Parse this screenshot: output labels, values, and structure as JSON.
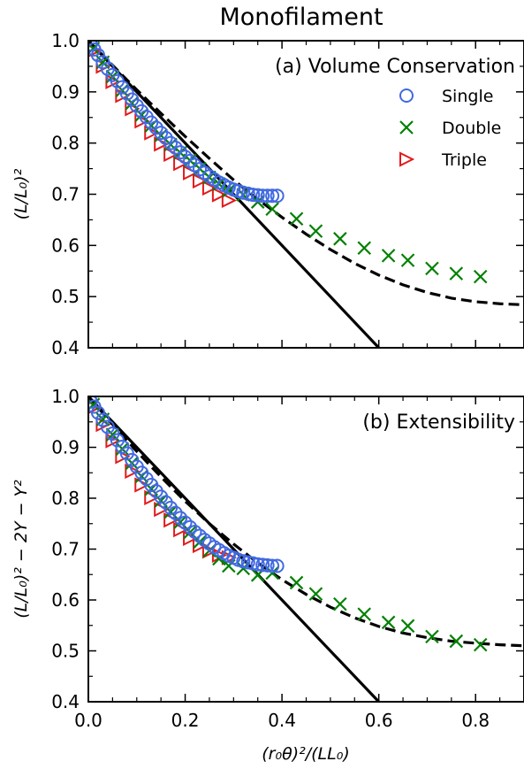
{
  "figure": {
    "title": "Monofilament",
    "xlabel": "(r₀θ)²/(LL₀)"
  },
  "chart_data": [
    {
      "type": "scatter",
      "panel": "a",
      "title": "(a) Volume Conservation",
      "xlabel": "(r₀θ)²/(LL₀)",
      "ylabel": "(L/L₀)²",
      "xlim": [
        0.0,
        0.9
      ],
      "ylim": [
        0.4,
        1.0
      ],
      "x_ticks": [
        "0.0",
        "0.2",
        "0.4",
        "0.6",
        "0.8"
      ],
      "y_ticks": [
        "0.4",
        "0.5",
        "0.6",
        "0.7",
        "0.8",
        "0.9",
        "1.0"
      ],
      "grid": false,
      "legend_position": "upper-right",
      "series": [
        {
          "name": "Single",
          "marker": "circle",
          "color": "#4169e1",
          "points": [
            [
              0.005,
              0.993
            ],
            [
              0.012,
              0.983
            ],
            [
              0.02,
              0.972
            ],
            [
              0.03,
              0.958
            ],
            [
              0.04,
              0.945
            ],
            [
              0.05,
              0.933
            ],
            [
              0.06,
              0.921
            ],
            [
              0.07,
              0.909
            ],
            [
              0.08,
              0.897
            ],
            [
              0.09,
              0.885
            ],
            [
              0.1,
              0.873
            ],
            [
              0.11,
              0.862
            ],
            [
              0.12,
              0.851
            ],
            [
              0.13,
              0.84
            ],
            [
              0.14,
              0.83
            ],
            [
              0.15,
              0.82
            ],
            [
              0.16,
              0.81
            ],
            [
              0.17,
              0.8
            ],
            [
              0.18,
              0.791
            ],
            [
              0.19,
              0.782
            ],
            [
              0.2,
              0.773
            ],
            [
              0.21,
              0.765
            ],
            [
              0.22,
              0.757
            ],
            [
              0.23,
              0.749
            ],
            [
              0.24,
              0.742
            ],
            [
              0.25,
              0.735
            ],
            [
              0.26,
              0.729
            ],
            [
              0.27,
              0.723
            ],
            [
              0.28,
              0.718
            ],
            [
              0.29,
              0.713
            ],
            [
              0.3,
              0.709
            ],
            [
              0.31,
              0.706
            ],
            [
              0.32,
              0.703
            ],
            [
              0.33,
              0.701
            ],
            [
              0.34,
              0.699
            ],
            [
              0.35,
              0.698
            ],
            [
              0.36,
              0.697
            ],
            [
              0.37,
              0.697
            ],
            [
              0.38,
              0.697
            ],
            [
              0.39,
              0.697
            ]
          ]
        },
        {
          "name": "Double",
          "marker": "x",
          "color": "#008000",
          "points": [
            [
              0.01,
              0.985
            ],
            [
              0.03,
              0.958
            ],
            [
              0.05,
              0.93
            ],
            [
              0.07,
              0.903
            ],
            [
              0.09,
              0.878
            ],
            [
              0.11,
              0.855
            ],
            [
              0.13,
              0.834
            ],
            [
              0.15,
              0.815
            ],
            [
              0.17,
              0.797
            ],
            [
              0.19,
              0.781
            ],
            [
              0.21,
              0.766
            ],
            [
              0.23,
              0.75
            ],
            [
              0.25,
              0.733
            ],
            [
              0.27,
              0.72
            ],
            [
              0.29,
              0.707
            ],
            [
              0.32,
              0.699
            ],
            [
              0.35,
              0.685
            ],
            [
              0.38,
              0.671
            ],
            [
              0.43,
              0.652
            ],
            [
              0.47,
              0.628
            ],
            [
              0.52,
              0.613
            ],
            [
              0.57,
              0.595
            ],
            [
              0.62,
              0.58
            ],
            [
              0.66,
              0.571
            ],
            [
              0.71,
              0.555
            ],
            [
              0.76,
              0.545
            ],
            [
              0.81,
              0.539
            ]
          ]
        },
        {
          "name": "Triple",
          "marker": "triangle-right",
          "color": "#e31a1c",
          "points": [
            [
              0.01,
              0.98
            ],
            [
              0.03,
              0.95
            ],
            [
              0.05,
              0.92
            ],
            [
              0.07,
              0.893
            ],
            [
              0.09,
              0.867
            ],
            [
              0.11,
              0.843
            ],
            [
              0.13,
              0.82
            ],
            [
              0.15,
              0.798
            ],
            [
              0.17,
              0.778
            ],
            [
              0.19,
              0.76
            ],
            [
              0.21,
              0.742
            ],
            [
              0.23,
              0.726
            ],
            [
              0.25,
              0.712
            ],
            [
              0.27,
              0.699
            ],
            [
              0.29,
              0.688
            ]
          ]
        }
      ],
      "lines": [
        {
          "style": "solid",
          "color": "#000000",
          "x": [
            0.0,
            0.6
          ],
          "y": [
            1.0,
            0.4
          ]
        },
        {
          "style": "dashed",
          "color": "#000000",
          "x": [
            0.0,
            0.05,
            0.1,
            0.15,
            0.2,
            0.25,
            0.3,
            0.35,
            0.4,
            0.45,
            0.5,
            0.55,
            0.6,
            0.65,
            0.7,
            0.75,
            0.8,
            0.85,
            0.9
          ],
          "y": [
            1.0,
            0.952,
            0.904,
            0.858,
            0.813,
            0.77,
            0.728,
            0.69,
            0.655,
            0.622,
            0.592,
            0.565,
            0.542,
            0.523,
            0.508,
            0.497,
            0.49,
            0.486,
            0.484
          ]
        }
      ]
    },
    {
      "type": "scatter",
      "panel": "b",
      "title": "(b) Extensibility",
      "xlabel": "(r₀θ)²/(LL₀)",
      "ylabel": "(L/L₀)² − 2Y − Y²",
      "xlim": [
        0.0,
        0.9
      ],
      "ylim": [
        0.4,
        1.0
      ],
      "x_ticks": [
        "0.0",
        "0.2",
        "0.4",
        "0.6",
        "0.8"
      ],
      "y_ticks": [
        "0.4",
        "0.5",
        "0.6",
        "0.7",
        "0.8",
        "0.9",
        "1.0"
      ],
      "grid": false,
      "series": [
        {
          "name": "Single",
          "marker": "circle",
          "color": "#4169e1",
          "points": [
            [
              0.005,
              0.99
            ],
            [
              0.012,
              0.98
            ],
            [
              0.02,
              0.968
            ],
            [
              0.03,
              0.954
            ],
            [
              0.04,
              0.94
            ],
            [
              0.05,
              0.927
            ],
            [
              0.06,
              0.914
            ],
            [
              0.07,
              0.901
            ],
            [
              0.08,
              0.888
            ],
            [
              0.09,
              0.875
            ],
            [
              0.1,
              0.862
            ],
            [
              0.11,
              0.85
            ],
            [
              0.12,
              0.838
            ],
            [
              0.13,
              0.826
            ],
            [
              0.14,
              0.814
            ],
            [
              0.15,
              0.803
            ],
            [
              0.16,
              0.792
            ],
            [
              0.17,
              0.781
            ],
            [
              0.18,
              0.771
            ],
            [
              0.19,
              0.761
            ],
            [
              0.2,
              0.752
            ],
            [
              0.21,
              0.743
            ],
            [
              0.22,
              0.734
            ],
            [
              0.23,
              0.726
            ],
            [
              0.24,
              0.718
            ],
            [
              0.25,
              0.711
            ],
            [
              0.26,
              0.704
            ],
            [
              0.27,
              0.698
            ],
            [
              0.28,
              0.692
            ],
            [
              0.29,
              0.687
            ],
            [
              0.3,
              0.683
            ],
            [
              0.31,
              0.679
            ],
            [
              0.32,
              0.676
            ],
            [
              0.33,
              0.674
            ],
            [
              0.34,
              0.672
            ],
            [
              0.35,
              0.67
            ],
            [
              0.36,
              0.669
            ],
            [
              0.37,
              0.668
            ],
            [
              0.38,
              0.667
            ],
            [
              0.39,
              0.667
            ]
          ]
        },
        {
          "name": "Double",
          "marker": "x",
          "color": "#008000",
          "points": [
            [
              0.01,
              0.984
            ],
            [
              0.03,
              0.955
            ],
            [
              0.05,
              0.925
            ],
            [
              0.07,
              0.897
            ],
            [
              0.09,
              0.869
            ],
            [
              0.11,
              0.843
            ],
            [
              0.13,
              0.818
            ],
            [
              0.15,
              0.795
            ],
            [
              0.17,
              0.773
            ],
            [
              0.19,
              0.753
            ],
            [
              0.21,
              0.733
            ],
            [
              0.23,
              0.714
            ],
            [
              0.25,
              0.697
            ],
            [
              0.27,
              0.681
            ],
            [
              0.29,
              0.667
            ],
            [
              0.32,
              0.662
            ],
            [
              0.35,
              0.649
            ],
            [
              0.38,
              0.653
            ],
            [
              0.43,
              0.634
            ],
            [
              0.47,
              0.612
            ],
            [
              0.52,
              0.592
            ],
            [
              0.57,
              0.572
            ],
            [
              0.62,
              0.556
            ],
            [
              0.66,
              0.549
            ],
            [
              0.71,
              0.528
            ],
            [
              0.76,
              0.519
            ],
            [
              0.81,
              0.512
            ]
          ]
        },
        {
          "name": "Triple",
          "marker": "triangle-right",
          "color": "#e31a1c",
          "points": [
            [
              0.01,
              0.978
            ],
            [
              0.03,
              0.945
            ],
            [
              0.05,
              0.913
            ],
            [
              0.07,
              0.882
            ],
            [
              0.09,
              0.853
            ],
            [
              0.11,
              0.826
            ],
            [
              0.13,
              0.801
            ],
            [
              0.15,
              0.778
            ],
            [
              0.17,
              0.757
            ],
            [
              0.19,
              0.738
            ],
            [
              0.21,
              0.721
            ],
            [
              0.23,
              0.707
            ],
            [
              0.25,
              0.696
            ],
            [
              0.27,
              0.688
            ],
            [
              0.29,
              0.683
            ]
          ]
        }
      ],
      "lines": [
        {
          "style": "solid",
          "color": "#000000",
          "x": [
            0.0,
            0.6
          ],
          "y": [
            1.0,
            0.4
          ]
        },
        {
          "style": "dashed",
          "color": "#000000",
          "x": [
            0.0,
            0.05,
            0.1,
            0.15,
            0.2,
            0.25,
            0.3,
            0.35,
            0.4,
            0.45,
            0.5,
            0.55,
            0.6,
            0.65,
            0.7,
            0.75,
            0.8,
            0.85,
            0.9
          ],
          "y": [
            1.0,
            0.945,
            0.892,
            0.842,
            0.794,
            0.75,
            0.71,
            0.673,
            0.64,
            0.611,
            0.586,
            0.565,
            0.548,
            0.535,
            0.526,
            0.519,
            0.515,
            0.512,
            0.51
          ]
        }
      ]
    }
  ]
}
